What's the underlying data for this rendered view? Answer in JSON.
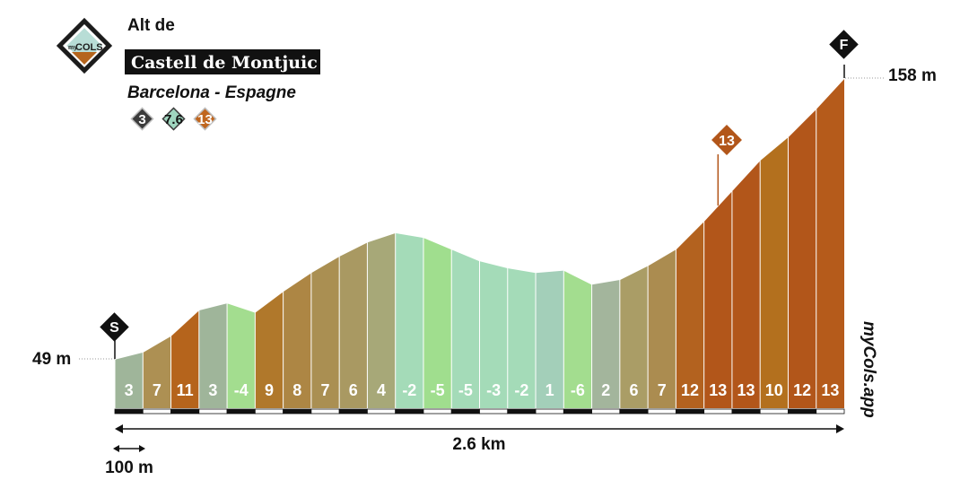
{
  "header": {
    "pre_title": "Alt de",
    "title": "Castell de Montjuic",
    "location": "Barcelona - Espagne",
    "badges": [
      {
        "icon": "difficulty-badge-icon",
        "value": "3",
        "color": "#3b3b3b"
      },
      {
        "icon": "gradient-badge-icon",
        "value": "7.6",
        "color": "#9fd6bf"
      },
      {
        "icon": "max-gradient-badge-icon",
        "value": "13",
        "color": "#c0661e"
      }
    ]
  },
  "logo": {
    "text_small": "my",
    "text_main": "COLS"
  },
  "start_marker": "S",
  "finish_marker": "F",
  "start_elevation_label": "49 m",
  "finish_elevation_label": "158 m",
  "max_gradient_marker": "13",
  "distance_label": "2.6 km",
  "scale_label": "100 m",
  "watermark": "myCols.app",
  "chart_data": {
    "type": "area",
    "distance_km": 2.6,
    "segment_km": 0.1,
    "elevation_range_m": [
      49,
      158
    ],
    "segment_gradients": [
      3,
      7,
      11,
      3,
      -4,
      9,
      8,
      7,
      6,
      4,
      -2,
      -5,
      -5,
      -3,
      -2,
      1,
      -6,
      2,
      6,
      7,
      12,
      13,
      13,
      10,
      12,
      13
    ],
    "segment_gradient_labels": [
      "3",
      "7",
      "11",
      "3",
      "-4",
      "9",
      "8",
      "7",
      "6",
      "4",
      "-2",
      "-5",
      "-5",
      "-3",
      "-2",
      "1",
      "-6",
      "2",
      "6",
      "7",
      "12",
      "13",
      "13",
      "10",
      "12",
      "13"
    ],
    "max_gradient_segment": 21,
    "segment_colors": [
      "#9fb59a",
      "#ad9053",
      "#b5641c",
      "#9fb59a",
      "#a3dd8f",
      "#b0782b",
      "#ad8644",
      "#aa8f52",
      "#a99962",
      "#a7a878",
      "#a4dbb8",
      "#a0de8e",
      "#a4dbb8",
      "#a4dbb8",
      "#a4dbb8",
      "#a3cfb9",
      "#a3dd8f",
      "#a3b59c",
      "#aa9d66",
      "#ab8c50",
      "#b3621f",
      "#b2561a",
      "#b2561a",
      "#b3701e",
      "#b2561a",
      "#b55b1b"
    ]
  }
}
